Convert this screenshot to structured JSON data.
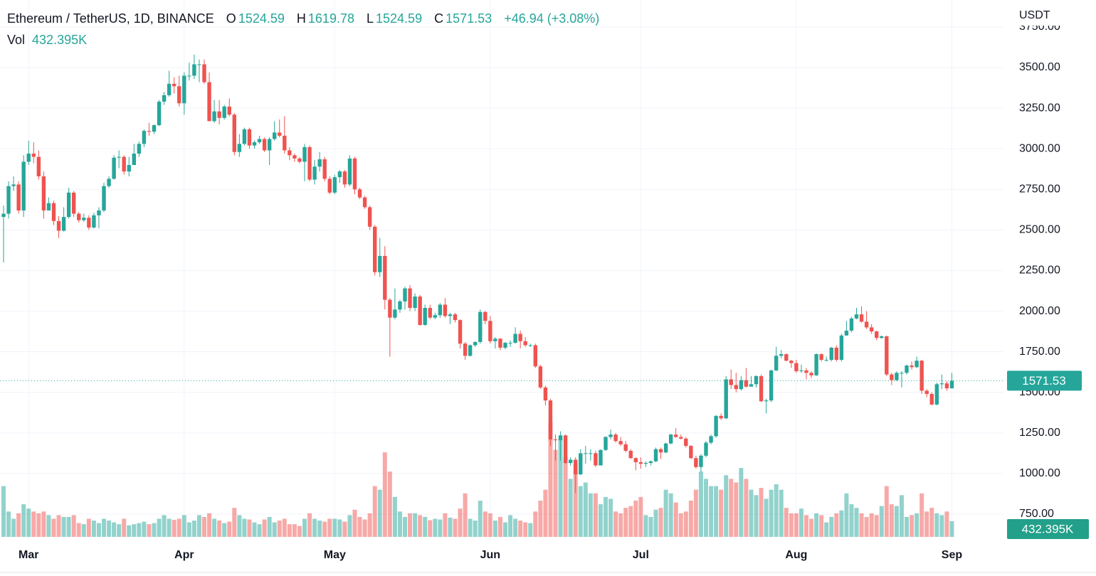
{
  "chart_data": {
    "type": "candlestick",
    "title": "Ethereum / TetherUS, 1D, BINANCE",
    "ohlc_labels": [
      "O",
      "H",
      "L",
      "C"
    ],
    "change_label": "+46.94 (+3.08%)",
    "volume_title": "Vol",
    "volume_label": "432.395K",
    "y_axis_label": "USDT",
    "up_color": "#26a69a",
    "down_color": "#ef5350",
    "grid": true,
    "ylim": [
      588,
      3916
    ],
    "yticks": [
      {
        "value": 750,
        "label": "750.00"
      },
      {
        "value": 1000,
        "label": "1000.00"
      },
      {
        "value": 1250,
        "label": "1250.00"
      },
      {
        "value": 1500,
        "label": "1500.00"
      },
      {
        "value": 1750,
        "label": "1750.00"
      },
      {
        "value": 2000,
        "label": "2000.00"
      },
      {
        "value": 2250,
        "label": "2250.00"
      },
      {
        "value": 2500,
        "label": "2500.00"
      },
      {
        "value": 2750,
        "label": "2750.00"
      },
      {
        "value": 3000,
        "label": "3000.00"
      },
      {
        "value": 3250,
        "label": "3250.00"
      },
      {
        "value": 3500,
        "label": "3500.00"
      },
      {
        "value": 3750,
        "label": "3750.00"
      }
    ],
    "volume_ylim": [
      0,
      14800
    ],
    "categories": [
      null,
      null,
      null,
      null,
      null,
      "Mar",
      null,
      null,
      null,
      null,
      null,
      null,
      null,
      null,
      null,
      null,
      null,
      null,
      null,
      null,
      null,
      null,
      null,
      null,
      null,
      null,
      null,
      null,
      null,
      null,
      null,
      null,
      null,
      null,
      null,
      null,
      "Apr",
      null,
      null,
      null,
      null,
      null,
      null,
      null,
      null,
      null,
      null,
      null,
      null,
      null,
      null,
      null,
      null,
      null,
      null,
      null,
      null,
      null,
      null,
      null,
      null,
      null,
      null,
      null,
      null,
      null,
      "May",
      null,
      null,
      null,
      null,
      null,
      null,
      null,
      null,
      null,
      null,
      null,
      null,
      null,
      null,
      null,
      null,
      null,
      null,
      null,
      null,
      null,
      null,
      null,
      null,
      null,
      null,
      null,
      null,
      null,
      null,
      "Jun",
      null,
      null,
      null,
      null,
      null,
      null,
      null,
      null,
      null,
      null,
      null,
      null,
      null,
      null,
      null,
      null,
      null,
      null,
      null,
      null,
      null,
      null,
      null,
      null,
      null,
      null,
      null,
      null,
      null,
      "Jul",
      null,
      null,
      null,
      null,
      null,
      null,
      null,
      null,
      null,
      null,
      null,
      null,
      null,
      null,
      null,
      null,
      null,
      null,
      null,
      null,
      null,
      null,
      null,
      null,
      null,
      null,
      null,
      null,
      null,
      null,
      "Aug",
      null,
      null,
      null,
      null,
      null,
      null,
      null,
      null,
      null,
      null,
      null,
      null,
      null,
      null,
      null,
      null,
      null,
      null,
      null,
      null,
      null,
      null,
      null,
      null,
      null,
      null,
      null,
      null,
      null,
      null,
      "Sep"
    ],
    "open": [
      2580,
      2600,
      2770,
      2780,
      2620,
      2920,
      2970,
      2950,
      2830,
      2620,
      2665,
      2555,
      2495,
      2580,
      2730,
      2600,
      2560,
      2575,
      2515,
      2590,
      2620,
      2770,
      2815,
      2945,
      2950,
      2860,
      2900,
      2970,
      3030,
      3110,
      3105,
      3145,
      3290,
      3330,
      3400,
      3385,
      3280,
      3450,
      3450,
      3520,
      3520,
      3410,
      3170,
      3230,
      3190,
      3260,
      3210,
      2980,
      3030,
      3120,
      3020,
      3040,
      3060,
      2990,
      3060,
      3100,
      3080,
      2990,
      2960,
      2940,
      2920,
      3010,
      2810,
      2890,
      2935,
      2815,
      2730,
      2825,
      2860,
      2780,
      2940,
      2750,
      2700,
      2640,
      2520,
      2240,
      2340,
      2070,
      1960,
      2010,
      2060,
      2140,
      2020,
      2090,
      1915,
      2020,
      1960,
      1975,
      2040,
      1970,
      1980,
      1945,
      1800,
      1725,
      1790,
      1810,
      1995,
      1940,
      1815,
      1830,
      1775,
      1805,
      1805,
      1860,
      1815,
      1790,
      1790,
      1660,
      1530,
      1450,
      1210,
      1205,
      1235,
      1065,
      1085,
      995,
      1125,
      1125,
      1125,
      1050,
      1145,
      1225,
      1240,
      1200,
      1180,
      1140,
      1095,
      1070,
      1060,
      1065,
      1075,
      1150,
      1130,
      1185,
      1240,
      1225,
      1215,
      1170,
      1095,
      1040,
      1110,
      1190,
      1230,
      1355,
      1340,
      1580,
      1545,
      1520,
      1575,
      1535,
      1550,
      1600,
      1445,
      1450,
      1635,
      1725,
      1735,
      1695,
      1680,
      1630,
      1635,
      1620,
      1605,
      1735,
      1700,
      1700,
      1775,
      1700,
      1850,
      1880,
      1955,
      1980,
      1935,
      1900,
      1875,
      1835,
      1845,
      1610,
      1575,
      1620,
      1620,
      1665,
      1655,
      1695,
      1510,
      1490,
      1425,
      1550,
      1555,
      1524.59
    ],
    "high": [
      2650,
      2800,
      2830,
      2800,
      2960,
      3050,
      3040,
      2990,
      2860,
      2700,
      2680,
      2585,
      2640,
      2760,
      2740,
      2610,
      2600,
      2590,
      2605,
      2640,
      2790,
      2830,
      2960,
      2990,
      2960,
      2950,
      3030,
      3045,
      3120,
      3160,
      3150,
      3300,
      3350,
      3480,
      3440,
      3450,
      3470,
      3530,
      3580,
      3550,
      3550,
      3470,
      3300,
      3300,
      3270,
      3310,
      3220,
      3090,
      3130,
      3130,
      3050,
      3080,
      3070,
      3070,
      3170,
      3180,
      3200,
      3010,
      2970,
      2950,
      3030,
      3020,
      2930,
      2980,
      2950,
      2830,
      2840,
      2870,
      2870,
      2960,
      2950,
      2760,
      2710,
      2650,
      2530,
      2450,
      2400,
      2080,
      2140,
      2070,
      2150,
      2160,
      2110,
      2100,
      2040,
      2040,
      1990,
      2050,
      2080,
      1990,
      1990,
      1950,
      1810,
      1795,
      1815,
      2010,
      2000,
      1970,
      1840,
      1835,
      1810,
      1820,
      1900,
      1880,
      1840,
      1800,
      1800,
      1670,
      1540,
      1460,
      1240,
      1260,
      1240,
      1100,
      1100,
      1150,
      1170,
      1150,
      1140,
      1150,
      1230,
      1270,
      1250,
      1225,
      1200,
      1150,
      1100,
      1100,
      1075,
      1080,
      1160,
      1160,
      1190,
      1245,
      1280,
      1240,
      1225,
      1175,
      1110,
      1120,
      1200,
      1240,
      1360,
      1370,
      1600,
      1640,
      1620,
      1600,
      1650,
      1600,
      1605,
      1610,
      1460,
      1640,
      1780,
      1760,
      1740,
      1700,
      1700,
      1670,
      1650,
      1630,
      1740,
      1740,
      1720,
      1780,
      1790,
      1860,
      1940,
      1965,
      2020,
      2030,
      2000,
      1920,
      1880,
      1850,
      1850,
      1620,
      1630,
      1630,
      1670,
      1690,
      1720,
      1700,
      1520,
      1500,
      1560,
      1610,
      1570,
      1619.78
    ],
    "low": [
      2300,
      2570,
      2740,
      2600,
      2580,
      2900,
      2910,
      2810,
      2570,
      2620,
      2530,
      2450,
      2490,
      2570,
      2580,
      2545,
      2550,
      2500,
      2510,
      2510,
      2610,
      2760,
      2810,
      2880,
      2840,
      2830,
      2900,
      2950,
      3010,
      3080,
      3090,
      3140,
      3270,
      3320,
      3340,
      3260,
      3210,
      3420,
      3430,
      3410,
      3400,
      3170,
      3160,
      3150,
      3180,
      3200,
      2960,
      2950,
      3020,
      3000,
      3000,
      3030,
      2980,
      2900,
      3050,
      3070,
      2970,
      2930,
      2920,
      2910,
      2800,
      2800,
      2780,
      2860,
      2800,
      2720,
      2720,
      2790,
      2760,
      2770,
      2720,
      2690,
      2630,
      2500,
      2220,
      2210,
      2010,
      1720,
      1950,
      1990,
      2010,
      2000,
      2000,
      1910,
      1910,
      1950,
      1950,
      1960,
      1960,
      1920,
      1930,
      1770,
      1700,
      1720,
      1780,
      1800,
      1920,
      1800,
      1770,
      1760,
      1765,
      1780,
      1800,
      1770,
      1780,
      1780,
      1650,
      1520,
      1420,
      1170,
      1080,
      1080,
      1060,
      1050,
      880,
      990,
      1060,
      1080,
      1040,
      1050,
      1140,
      1210,
      1190,
      1170,
      1130,
      1090,
      1020,
      1030,
      1040,
      1050,
      1070,
      1090,
      1125,
      1180,
      1220,
      1210,
      1160,
      1090,
      1030,
      1010,
      1100,
      1180,
      1220,
      1330,
      1335,
      1520,
      1500,
      1510,
      1530,
      1540,
      1530,
      1440,
      1370,
      1440,
      1630,
      1710,
      1690,
      1650,
      1620,
      1620,
      1580,
      1590,
      1600,
      1690,
      1690,
      1690,
      1690,
      1690,
      1850,
      1870,
      1950,
      1930,
      1890,
      1860,
      1820,
      1830,
      1600,
      1545,
      1570,
      1530,
      1610,
      1640,
      1650,
      1490,
      1470,
      1420,
      1420,
      1520,
      1510,
      1524.59
    ],
    "close": [
      2600,
      2770,
      2780,
      2620,
      2920,
      2970,
      2950,
      2830,
      2620,
      2665,
      2555,
      2495,
      2580,
      2730,
      2600,
      2560,
      2575,
      2515,
      2590,
      2620,
      2770,
      2815,
      2945,
      2950,
      2860,
      2900,
      2970,
      3030,
      3110,
      3105,
      3145,
      3290,
      3330,
      3400,
      3385,
      3280,
      3450,
      3450,
      3520,
      3520,
      3410,
      3170,
      3230,
      3190,
      3260,
      3210,
      2980,
      3030,
      3120,
      3020,
      3040,
      3060,
      2990,
      3060,
      3100,
      3080,
      2990,
      2960,
      2940,
      2920,
      3010,
      2810,
      2890,
      2935,
      2815,
      2730,
      2825,
      2860,
      2780,
      2940,
      2750,
      2700,
      2640,
      2520,
      2240,
      2340,
      2070,
      1960,
      2010,
      2060,
      2140,
      2020,
      2090,
      1915,
      2020,
      1960,
      1975,
      2040,
      1970,
      1980,
      1945,
      1800,
      1725,
      1790,
      1810,
      1995,
      1940,
      1815,
      1830,
      1775,
      1805,
      1805,
      1860,
      1815,
      1790,
      1790,
      1660,
      1530,
      1450,
      1210,
      1205,
      1235,
      1065,
      1085,
      995,
      1125,
      1125,
      1125,
      1050,
      1145,
      1225,
      1240,
      1200,
      1180,
      1140,
      1095,
      1070,
      1060,
      1065,
      1075,
      1150,
      1130,
      1185,
      1240,
      1225,
      1215,
      1170,
      1095,
      1040,
      1110,
      1190,
      1230,
      1355,
      1340,
      1580,
      1545,
      1520,
      1575,
      1535,
      1550,
      1600,
      1445,
      1450,
      1635,
      1725,
      1735,
      1695,
      1680,
      1630,
      1635,
      1620,
      1605,
      1735,
      1700,
      1700,
      1775,
      1700,
      1850,
      1880,
      1955,
      1980,
      1935,
      1900,
      1875,
      1835,
      1845,
      1610,
      1575,
      1620,
      1620,
      1665,
      1655,
      1695,
      1510,
      1490,
      1425,
      1550,
      1555,
      1524.59,
      1571.53
    ],
    "volume": [
      1400,
      700,
      500,
      650,
      900,
      780,
      700,
      650,
      700,
      600,
      500,
      600,
      550,
      550,
      600,
      380,
      350,
      500,
      450,
      380,
      500,
      450,
      400,
      350,
      500,
      320,
      350,
      380,
      420,
      350,
      380,
      500,
      600,
      500,
      470,
      500,
      600,
      400,
      450,
      600,
      550,
      650,
      500,
      450,
      380,
      420,
      800,
      600,
      500,
      480,
      400,
      350,
      480,
      550,
      400,
      450,
      500,
      350,
      350,
      300,
      500,
      650,
      500,
      450,
      420,
      500,
      500,
      480,
      420,
      600,
      750,
      550,
      480,
      650,
      1400,
      1300,
      2330,
      1800,
      1100,
      700,
      550,
      650,
      650,
      600,
      550,
      460,
      500,
      480,
      650,
      530,
      500,
      780,
      1200,
      500,
      450,
      1000,
      700,
      650,
      450,
      550,
      400,
      600,
      500,
      450,
      400,
      380,
      700,
      1000,
      1300,
      3180,
      2400,
      2700,
      2200,
      1600,
      2000,
      1400,
      1500,
      1200,
      1200,
      900,
      1100,
      1050,
      700,
      650,
      800,
      850,
      1000,
      1100,
      600,
      550,
      750,
      800,
      1300,
      1200,
      950,
      650,
      700,
      1000,
      1300,
      1800,
      1600,
      1400,
      1400,
      1300,
      1700,
      1600,
      1500,
      1900,
      1600,
      1300,
      1150,
      1350,
      1050,
      1300,
      1450,
      1300,
      800,
      650,
      650,
      780,
      600,
      500,
      650,
      600,
      400,
      550,
      650,
      730,
      1200,
      900,
      800,
      650,
      550,
      650,
      600,
      850,
      1400,
      900,
      850,
      1150,
      550,
      600,
      650,
      1200,
      700,
      800,
      650,
      600,
      700,
      432.395
    ]
  }
}
